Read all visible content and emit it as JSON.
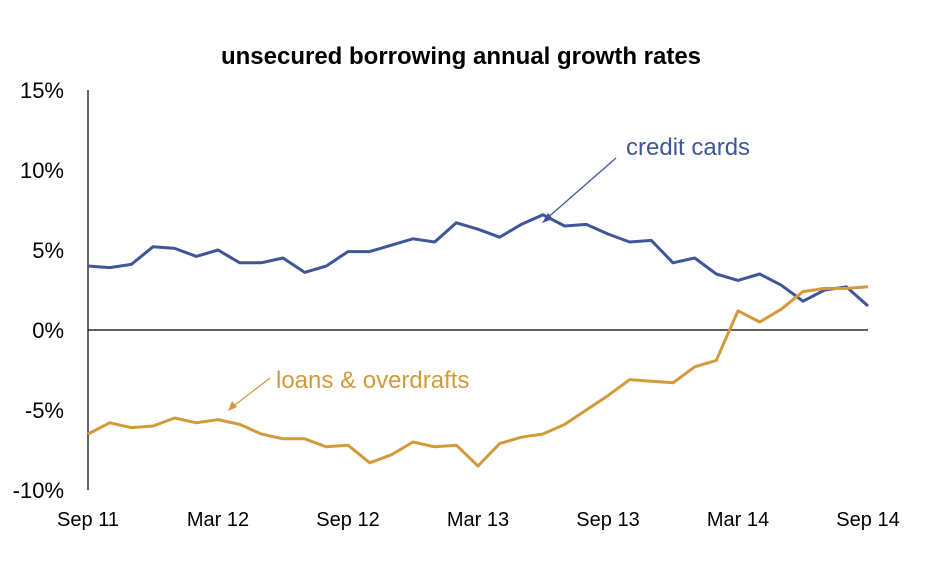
{
  "chart_data": {
    "type": "line",
    "title": "unsecured borrowing annual growth rates",
    "xlabel": "",
    "ylabel": "",
    "ylim": [
      -10,
      15
    ],
    "y_ticks": [
      "15%",
      "10%",
      "5%",
      "0%",
      "-5%",
      "-10%"
    ],
    "y_tick_values": [
      15,
      10,
      5,
      0,
      -5,
      -10
    ],
    "x_ticks": [
      "Sep 11",
      "Mar 12",
      "Sep 12",
      "Mar 13",
      "Sep 13",
      "Mar 14",
      "Sep 14"
    ],
    "x_tick_index": [
      0,
      6,
      12,
      18,
      24,
      30,
      36
    ],
    "x": [
      "Sep 11",
      "Oct 11",
      "Nov 11",
      "Dec 11",
      "Jan 12",
      "Feb 12",
      "Mar 12",
      "Apr 12",
      "May 12",
      "Jun 12",
      "Jul 12",
      "Aug 12",
      "Sep 12",
      "Oct 12",
      "Nov 12",
      "Dec 12",
      "Jan 13",
      "Feb 13",
      "Mar 13",
      "Apr 13",
      "May 13",
      "Jun 13",
      "Jul 13",
      "Aug 13",
      "Sep 13",
      "Oct 13",
      "Nov 13",
      "Dec 13",
      "Jan 14",
      "Feb 14",
      "Mar 14",
      "Apr 14",
      "May 14",
      "Jun 14",
      "Jul 14",
      "Aug 14",
      "Sep 14"
    ],
    "series": [
      {
        "name": "credit cards",
        "color": "#3f5698",
        "values": [
          4.0,
          3.9,
          4.1,
          5.2,
          5.1,
          4.6,
          5.0,
          4.2,
          4.2,
          4.5,
          3.6,
          4.0,
          4.9,
          4.9,
          5.3,
          5.7,
          5.5,
          6.7,
          6.3,
          5.8,
          6.6,
          7.2,
          6.5,
          6.6,
          6.0,
          5.5,
          5.6,
          4.2,
          4.5,
          3.5,
          3.1,
          3.5,
          2.8,
          1.8,
          2.5,
          2.7,
          1.5
        ]
      },
      {
        "name": "loans & overdrafts",
        "color": "#d39a3c",
        "values": [
          -6.5,
          -5.8,
          -6.1,
          -6.0,
          -5.5,
          -5.8,
          -5.6,
          -5.9,
          -6.5,
          -6.8,
          -6.8,
          -7.3,
          -7.2,
          -8.3,
          -7.8,
          -7.0,
          -7.3,
          -7.2,
          -8.5,
          -7.1,
          -6.7,
          -6.5,
          -5.9,
          -5.0,
          -4.1,
          -3.1,
          -3.2,
          -3.3,
          -2.3,
          -1.9,
          1.2,
          0.5,
          1.3,
          2.4,
          2.6,
          2.6,
          2.7
        ]
      }
    ],
    "annotations": [
      {
        "text": "credit cards",
        "color": "#3f5698"
      },
      {
        "text": "loans & overdrafts",
        "color": "#d39a3c"
      }
    ],
    "zero_line": true,
    "grid": false,
    "legend": "none"
  }
}
